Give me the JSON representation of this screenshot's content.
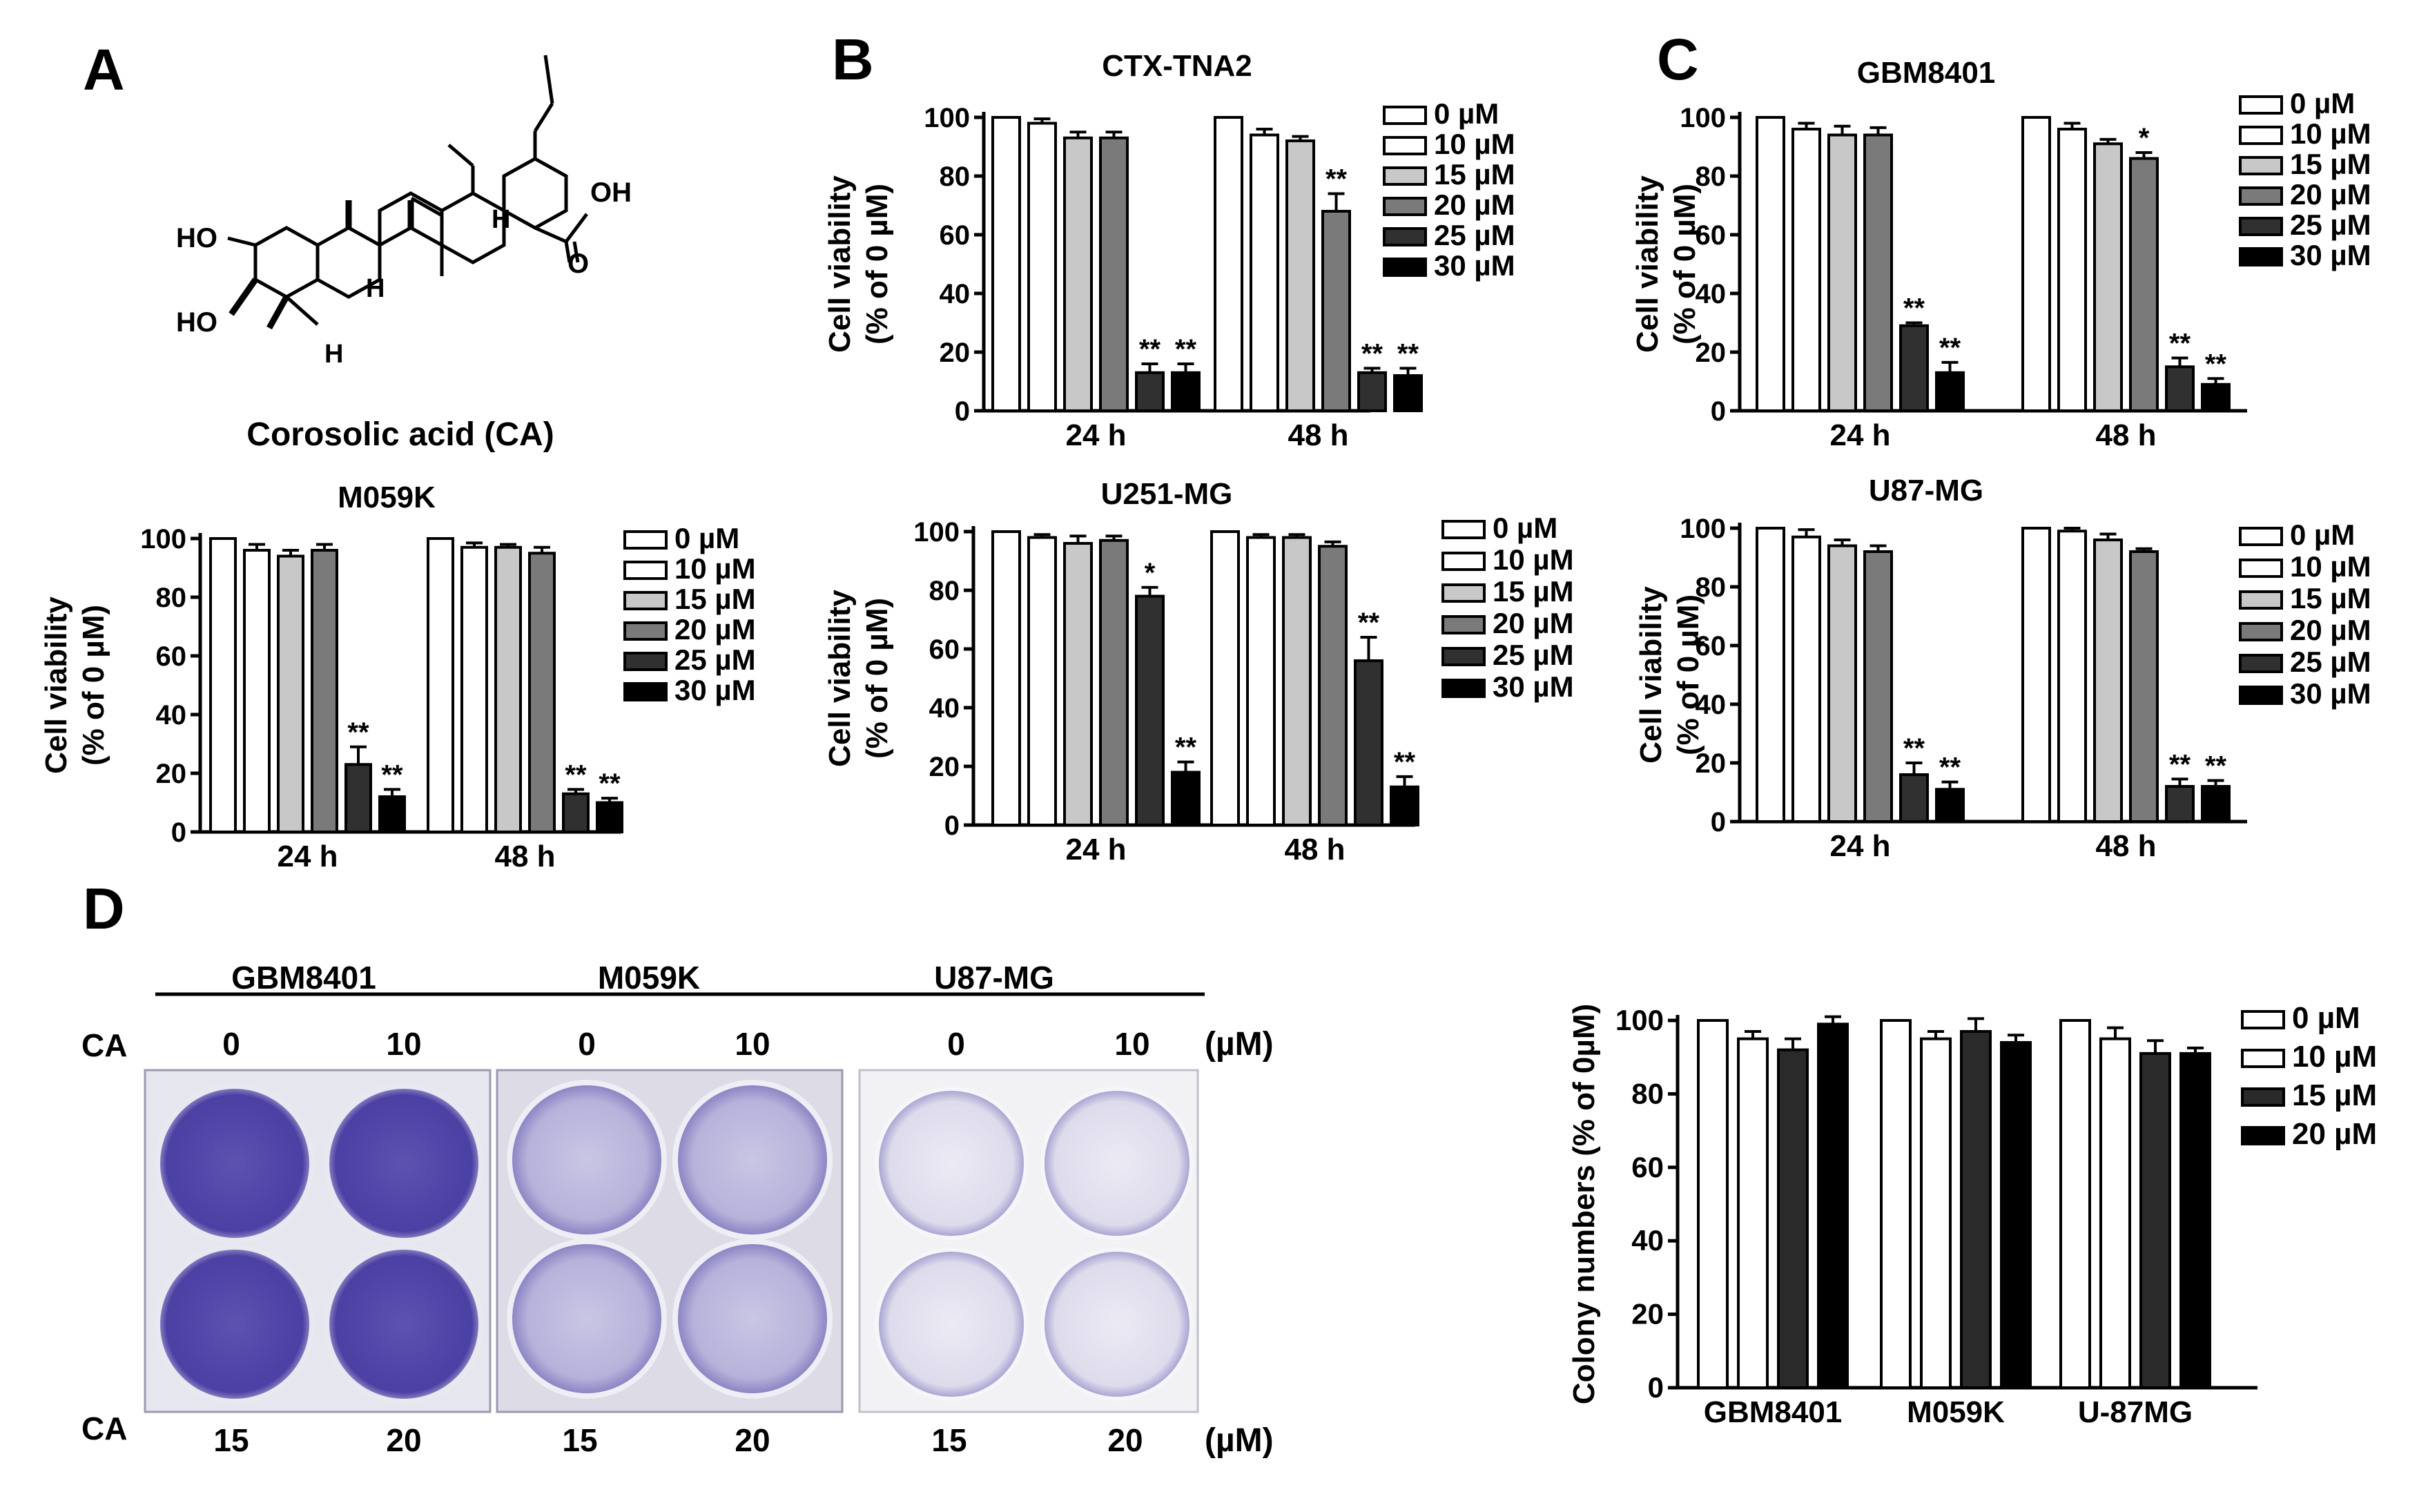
{
  "panel_letters": {
    "A": "A",
    "B": "B",
    "C": "C",
    "D": "D"
  },
  "structure": {
    "name": "Corosolic acid (CA)",
    "labels": {
      "ho1": "HO",
      "ho2": "HO",
      "oh": "OH",
      "o": "O",
      "h1": "H",
      "h2": "H",
      "h3": "H"
    }
  },
  "legend_labels": [
    "0 µM",
    "10 µM",
    "15 µM",
    "20 µM",
    "25 µM",
    "30 µM"
  ],
  "colony_legend_labels": [
    "0 µM",
    "10 µM",
    "15 µM",
    "20 µM"
  ],
  "colors": {
    "viability": [
      "#ffffff",
      "#ffffff",
      "#c8c8c8",
      "#7a7a7a",
      "#303030",
      "#000000"
    ],
    "colony": [
      "#ffffff",
      "#ffffff",
      "#2a2a2a",
      "#000000"
    ]
  },
  "plates": {
    "lines": [
      "GBM8401",
      "M059K",
      "U87-MG"
    ],
    "ca_label": "CA",
    "unit": "(µM)",
    "top_doses": [
      "0",
      "10",
      "0",
      "10",
      "0",
      "10"
    ],
    "bottom_doses": [
      "15",
      "20",
      "15",
      "20",
      "15",
      "20"
    ]
  },
  "chart_data": [
    {
      "type": "bar",
      "title": "CTX-TNA2",
      "categories": [
        "24 h",
        "48 h"
      ],
      "ylabel": "Cell viability\n(% of 0 µM)",
      "ylim": [
        0,
        100
      ],
      "yticks": [
        0,
        20,
        40,
        60,
        80,
        100
      ],
      "series": [
        {
          "name": "0 µM",
          "values": [
            100,
            100
          ],
          "err": [
            0,
            0
          ],
          "sig": [
            "",
            ""
          ]
        },
        {
          "name": "10 µM",
          "values": [
            98,
            94
          ],
          "err": [
            1.5,
            2
          ],
          "sig": [
            "",
            ""
          ]
        },
        {
          "name": "15 µM",
          "values": [
            93,
            92
          ],
          "err": [
            2,
            1.5
          ],
          "sig": [
            "",
            ""
          ]
        },
        {
          "name": "20 µM",
          "values": [
            93,
            68
          ],
          "err": [
            2,
            6
          ],
          "sig": [
            "",
            "**"
          ]
        },
        {
          "name": "25 µM",
          "values": [
            13,
            13
          ],
          "err": [
            3,
            1.5
          ],
          "sig": [
            "**",
            "**"
          ]
        },
        {
          "name": "30 µM",
          "values": [
            13,
            12
          ],
          "err": [
            3,
            2.5
          ],
          "sig": [
            "**",
            "**"
          ]
        }
      ]
    },
    {
      "type": "bar",
      "title": "GBM8401",
      "categories": [
        "24 h",
        "48 h"
      ],
      "ylabel": "Cell viability\n(% of 0 µM)",
      "ylim": [
        0,
        100
      ],
      "yticks": [
        0,
        20,
        40,
        60,
        80,
        100
      ],
      "series": [
        {
          "name": "0 µM",
          "values": [
            100,
            100
          ],
          "err": [
            0,
            0
          ],
          "sig": [
            "",
            ""
          ]
        },
        {
          "name": "10 µM",
          "values": [
            96,
            96
          ],
          "err": [
            2,
            2
          ],
          "sig": [
            "",
            ""
          ]
        },
        {
          "name": "15 µM",
          "values": [
            94,
            91
          ],
          "err": [
            3,
            1.5
          ],
          "sig": [
            "",
            ""
          ]
        },
        {
          "name": "20 µM",
          "values": [
            94,
            86
          ],
          "err": [
            2.5,
            2
          ],
          "sig": [
            "",
            "*"
          ]
        },
        {
          "name": "25 µM",
          "values": [
            29,
            15
          ],
          "err": [
            1,
            3
          ],
          "sig": [
            "**",
            "**"
          ]
        },
        {
          "name": "30 µM",
          "values": [
            13,
            9
          ],
          "err": [
            3.5,
            2
          ],
          "sig": [
            "**",
            "**"
          ]
        }
      ]
    },
    {
      "type": "bar",
      "title": "M059K",
      "categories": [
        "24 h",
        "48 h"
      ],
      "ylabel": "Cell viability\n(% of 0 µM)",
      "ylim": [
        0,
        100
      ],
      "yticks": [
        0,
        20,
        40,
        60,
        80,
        100
      ],
      "series": [
        {
          "name": "0 µM",
          "values": [
            100,
            100
          ],
          "err": [
            0,
            0
          ],
          "sig": [
            "",
            ""
          ]
        },
        {
          "name": "10 µM",
          "values": [
            96,
            97
          ],
          "err": [
            2,
            1.5
          ],
          "sig": [
            "",
            ""
          ]
        },
        {
          "name": "15 µM",
          "values": [
            94,
            97
          ],
          "err": [
            2,
            1
          ],
          "sig": [
            "",
            ""
          ]
        },
        {
          "name": "20 µM",
          "values": [
            96,
            95
          ],
          "err": [
            2,
            2
          ],
          "sig": [
            "",
            ""
          ]
        },
        {
          "name": "25 µM",
          "values": [
            23,
            13
          ],
          "err": [
            6,
            1.5
          ],
          "sig": [
            "**",
            "**"
          ]
        },
        {
          "name": "30 µM",
          "values": [
            12,
            10
          ],
          "err": [
            2.5,
            1.5
          ],
          "sig": [
            "**",
            "**"
          ]
        }
      ]
    },
    {
      "type": "bar",
      "title": "U251-MG",
      "categories": [
        "24 h",
        "48 h"
      ],
      "ylabel": "Cell viability\n(% of 0 µM)",
      "ylim": [
        0,
        100
      ],
      "yticks": [
        0,
        20,
        40,
        60,
        80,
        100
      ],
      "series": [
        {
          "name": "0 µM",
          "values": [
            100,
            100
          ],
          "err": [
            0,
            0
          ],
          "sig": [
            "",
            ""
          ]
        },
        {
          "name": "10 µM",
          "values": [
            98,
            98
          ],
          "err": [
            1,
            1
          ],
          "sig": [
            "",
            ""
          ]
        },
        {
          "name": "15 µM",
          "values": [
            96,
            98
          ],
          "err": [
            2.5,
            1
          ],
          "sig": [
            "",
            ""
          ]
        },
        {
          "name": "20 µM",
          "values": [
            97,
            95
          ],
          "err": [
            1.5,
            1.5
          ],
          "sig": [
            "",
            ""
          ]
        },
        {
          "name": "25 µM",
          "values": [
            78,
            56
          ],
          "err": [
            3,
            8
          ],
          "sig": [
            "*",
            "**"
          ]
        },
        {
          "name": "30 µM",
          "values": [
            18,
            13
          ],
          "err": [
            3.5,
            3.5
          ],
          "sig": [
            "**",
            "**"
          ]
        }
      ]
    },
    {
      "type": "bar",
      "title": "U87-MG",
      "categories": [
        "24 h",
        "48 h"
      ],
      "ylabel": "Cell viability\n(% of 0 µM)",
      "ylim": [
        0,
        100
      ],
      "yticks": [
        0,
        20,
        40,
        60,
        80,
        100
      ],
      "series": [
        {
          "name": "0 µM",
          "values": [
            100,
            100
          ],
          "err": [
            0,
            0
          ],
          "sig": [
            "",
            ""
          ]
        },
        {
          "name": "10 µM",
          "values": [
            97,
            99
          ],
          "err": [
            2.5,
            1
          ],
          "sig": [
            "",
            ""
          ]
        },
        {
          "name": "15 µM",
          "values": [
            94,
            96
          ],
          "err": [
            2,
            2
          ],
          "sig": [
            "",
            ""
          ]
        },
        {
          "name": "20 µM",
          "values": [
            92,
            92
          ],
          "err": [
            2,
            1
          ],
          "sig": [
            "",
            ""
          ]
        },
        {
          "name": "25 µM",
          "values": [
            16,
            12
          ],
          "err": [
            4,
            2.5
          ],
          "sig": [
            "**",
            "**"
          ]
        },
        {
          "name": "30 µM",
          "values": [
            11,
            12
          ],
          "err": [
            2.5,
            2
          ],
          "sig": [
            "**",
            "**"
          ]
        }
      ]
    },
    {
      "type": "bar",
      "title": "",
      "categories": [
        "GBM8401",
        "M059K",
        "U-87MG"
      ],
      "ylabel": "Colony numbers (% of 0µM)",
      "ylim": [
        0,
        100
      ],
      "yticks": [
        0,
        20,
        40,
        60,
        80,
        100
      ],
      "series": [
        {
          "name": "0 µM",
          "values": [
            100,
            100,
            100
          ],
          "err": [
            0,
            0,
            0
          ],
          "sig": [
            "",
            "",
            ""
          ]
        },
        {
          "name": "10 µM",
          "values": [
            95,
            95,
            95
          ],
          "err": [
            2,
            2,
            3
          ],
          "sig": [
            "",
            "",
            ""
          ]
        },
        {
          "name": "15 µM",
          "values": [
            92,
            97,
            91
          ],
          "err": [
            3,
            3.5,
            3.5
          ],
          "sig": [
            "",
            "",
            ""
          ]
        },
        {
          "name": "20 µM",
          "values": [
            99,
            94,
            91
          ],
          "err": [
            2,
            2,
            1.5
          ],
          "sig": [
            "",
            "",
            ""
          ]
        }
      ]
    }
  ]
}
